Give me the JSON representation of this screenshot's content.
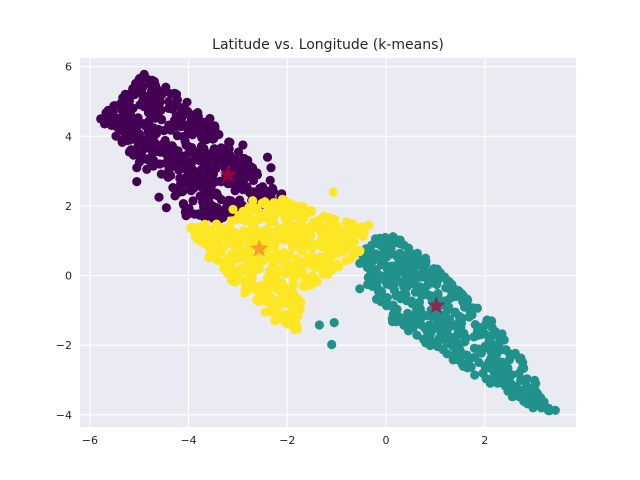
{
  "chart_data": {
    "type": "scatter",
    "title": "Latitude vs. Longitude (k-means)",
    "xlabel": "",
    "ylabel": "",
    "xlim": [
      -6.2,
      3.85
    ],
    "ylim": [
      -4.35,
      6.25
    ],
    "xticks": [
      -6,
      -4,
      -2,
      0,
      2
    ],
    "yticks": [
      -4,
      -2,
      0,
      2,
      4,
      6
    ],
    "grid": true,
    "legend": "none",
    "style": {
      "background": "#eaeaf2",
      "grid_color": "#ffffff",
      "text_color": "#262626"
    },
    "clusters": [
      {
        "id": 0,
        "color": "#440154",
        "point_count": 520,
        "outline": [
          [
            -5.8,
            4.5
          ],
          [
            -5.2,
            3.6
          ],
          [
            -5.0,
            3.2
          ],
          [
            -4.4,
            2.6
          ],
          [
            -4.2,
            1.8
          ],
          [
            -3.4,
            1.6
          ],
          [
            -2.6,
            1.95
          ],
          [
            -1.9,
            2.2
          ],
          [
            -2.4,
            2.8
          ],
          [
            -3.0,
            3.6
          ],
          [
            -3.6,
            4.6
          ],
          [
            -4.2,
            5.2
          ],
          [
            -4.9,
            5.8
          ]
        ],
        "outlier_points": [
          [
            -5.78,
            4.5
          ],
          [
            -4.9,
            5.78
          ],
          [
            -5.2,
            3.55
          ],
          [
            -5.05,
            3.1
          ],
          [
            -5.05,
            2.7
          ],
          [
            -4.6,
            2.25
          ],
          [
            -4.45,
            1.95
          ],
          [
            -4.05,
            1.72
          ],
          [
            -3.55,
            1.7
          ],
          [
            -2.4,
            3.4
          ],
          [
            -2.33,
            3.1
          ],
          [
            -2.9,
            3.75
          ],
          [
            -4.75,
            5.45
          ],
          [
            -4.4,
            5.0
          ]
        ],
        "centroid": {
          "x": -3.2,
          "y": 2.9
        }
      },
      {
        "id": 1,
        "color": "#21918c",
        "point_count": 470,
        "outline": [
          [
            -0.5,
            0.8
          ],
          [
            -0.3,
            1.1
          ],
          [
            0.2,
            1.2
          ],
          [
            0.8,
            0.5
          ],
          [
            1.5,
            -0.4
          ],
          [
            2.5,
            -1.8
          ],
          [
            3.4,
            -3.9
          ],
          [
            2.9,
            -3.8
          ],
          [
            2.0,
            -3.1
          ],
          [
            1.0,
            -2.1
          ],
          [
            0.0,
            -1.3
          ],
          [
            -0.4,
            -0.2
          ]
        ],
        "outlier_points": [
          [
            3.43,
            -3.87
          ],
          [
            3.15,
            -3.8
          ],
          [
            2.98,
            -3.8
          ],
          [
            3.05,
            -3.35
          ],
          [
            2.8,
            -3.55
          ],
          [
            2.55,
            -2.85
          ],
          [
            1.65,
            -2.65
          ],
          [
            -0.53,
            0.35
          ],
          [
            -0.53,
            -0.38
          ],
          [
            -1.35,
            -1.42
          ],
          [
            -1.05,
            -1.35
          ],
          [
            -1.1,
            -1.98
          ],
          [
            -0.2,
            0.95
          ],
          [
            0.5,
            0.6
          ]
        ],
        "centroid": {
          "x": 1.02,
          "y": -0.87
        }
      },
      {
        "id": 2,
        "color": "#fde725",
        "point_count": 500,
        "outline": [
          [
            -4.0,
            1.4
          ],
          [
            -3.2,
            1.6
          ],
          [
            -2.5,
            2.2
          ],
          [
            -2.0,
            2.2
          ],
          [
            -1.2,
            1.7
          ],
          [
            -0.4,
            1.4
          ],
          [
            -0.5,
            0.7
          ],
          [
            -1.1,
            0.1
          ],
          [
            -1.7,
            -0.6
          ],
          [
            -1.8,
            -1.6
          ],
          [
            -2.5,
            -1.0
          ],
          [
            -3.1,
            -0.2
          ],
          [
            -3.6,
            0.5
          ]
        ],
        "outlier_points": [
          [
            -1.07,
            2.4
          ],
          [
            -2.7,
            2.15
          ],
          [
            -3.1,
            1.9
          ],
          [
            -0.35,
            1.45
          ],
          [
            -0.75,
            1.25
          ],
          [
            -1.1,
            0.15
          ],
          [
            -2.45,
            -1.05
          ],
          [
            -1.85,
            -1.55
          ],
          [
            -2.25,
            -1.3
          ],
          [
            -3.95,
            1.35
          ],
          [
            -3.8,
            1.05
          ],
          [
            -0.62,
            0.7
          ]
        ],
        "centroid": {
          "x": -2.57,
          "y": 0.77
        }
      }
    ],
    "centroid_marker": {
      "shape": "star",
      "colors": [
        "#b5003c",
        "#b5003c",
        "#ff7f24"
      ]
    }
  }
}
